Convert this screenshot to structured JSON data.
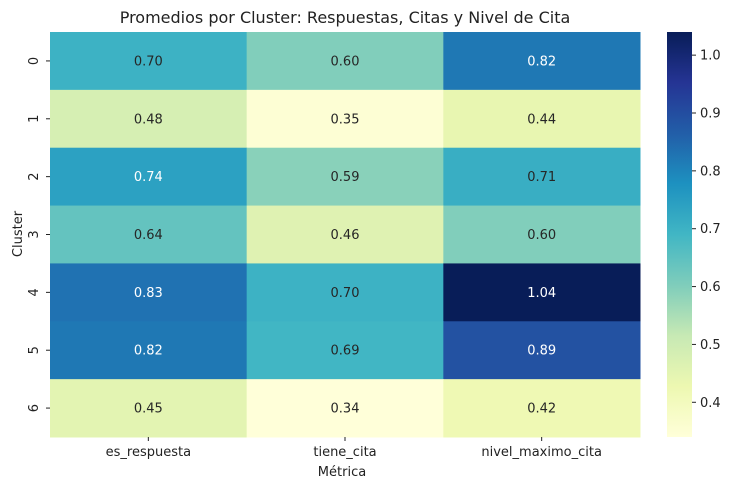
{
  "chart_data": {
    "type": "heatmap",
    "title": "Promedios por Cluster: Respuestas, Citas y Nivel de Cita",
    "xlabel": "Métrica",
    "ylabel": "Cluster",
    "columns": [
      "es_respuesta",
      "tiene_cita",
      "nivel_maximo_cita"
    ],
    "rows": [
      "0",
      "1",
      "2",
      "3",
      "4",
      "5",
      "6"
    ],
    "values": [
      [
        0.7,
        0.6,
        0.82
      ],
      [
        0.48,
        0.35,
        0.44
      ],
      [
        0.74,
        0.59,
        0.71
      ],
      [
        0.64,
        0.46,
        0.6
      ],
      [
        0.83,
        0.7,
        1.04
      ],
      [
        0.82,
        0.69,
        0.89
      ],
      [
        0.45,
        0.34,
        0.42
      ]
    ],
    "value_labels": [
      [
        "0.70",
        "0.60",
        "0.82"
      ],
      [
        "0.48",
        "0.35",
        "0.44"
      ],
      [
        "0.74",
        "0.59",
        "0.71"
      ],
      [
        "0.64",
        "0.46",
        "0.60"
      ],
      [
        "0.83",
        "0.70",
        "1.04"
      ],
      [
        "0.82",
        "0.69",
        "0.89"
      ],
      [
        "0.45",
        "0.34",
        "0.42"
      ]
    ],
    "colormap": "YlGnBu",
    "vmin": 0.34,
    "vmax": 1.04,
    "colorbar_ticks": [
      "0.4",
      "0.5",
      "0.6",
      "0.7",
      "0.8",
      "0.9",
      "1.0"
    ],
    "colorbar_tick_values": [
      0.4,
      0.5,
      0.6,
      0.7,
      0.8,
      0.9,
      1.0
    ],
    "grid": false,
    "colorbar_position": "right"
  }
}
